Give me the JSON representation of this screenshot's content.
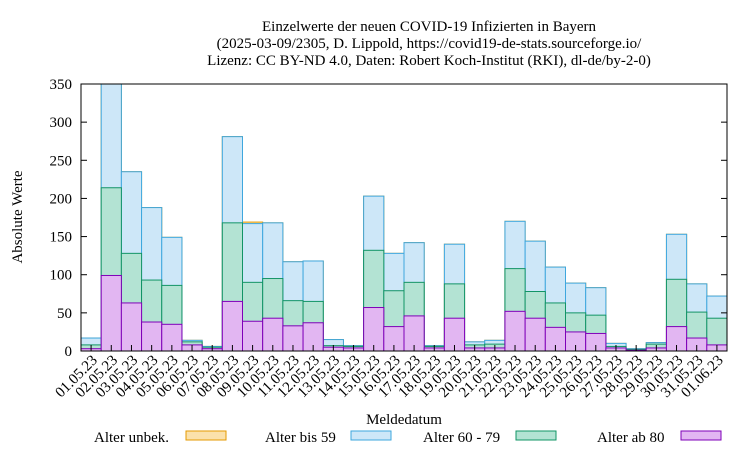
{
  "chart_data": {
    "type": "bar",
    "stacked": true,
    "title_lines": [
      "Einzelwerte der neuen COVID-19 Infizierten in Bayern",
      "(2025-03-09/2305, D. Lippold, https://covid19-de-stats.sourceforge.io/",
      "Lizenz: CC BY-ND 4.0, Daten: Robert Koch-Institut (RKI), dl-de/by-2-0)"
    ],
    "xlabel": "Meldedatum",
    "ylabel": "Absolute Werte",
    "ylim": [
      0,
      350
    ],
    "yticks": [
      0,
      50,
      100,
      150,
      200,
      250,
      300,
      350
    ],
    "grid": false,
    "legend_position": "bottom",
    "categories": [
      "01.05.23",
      "02.05.23",
      "03.05.23",
      "04.05.23",
      "05.05.23",
      "06.05.23",
      "07.05.23",
      "08.05.23",
      "09.05.23",
      "10.05.23",
      "11.05.23",
      "12.05.23",
      "13.05.23",
      "14.05.23",
      "15.05.23",
      "16.05.23",
      "17.05.23",
      "18.05.23",
      "19.05.23",
      "20.05.23",
      "21.05.23",
      "22.05.23",
      "23.05.23",
      "24.05.23",
      "25.05.23",
      "26.05.23",
      "27.05.23",
      "28.05.23",
      "29.05.23",
      "30.05.23",
      "31.05.23",
      "01.06.23"
    ],
    "series": [
      {
        "name": "Alter ab 80",
        "color": "#e2b6f2",
        "stroke": "#7f00b8",
        "values": [
          3,
          99,
          63,
          38,
          35,
          8,
          3,
          65,
          39,
          43,
          33,
          37,
          5,
          4,
          57,
          32,
          46,
          4,
          43,
          4,
          4,
          52,
          43,
          31,
          25,
          23,
          4,
          1,
          4,
          32,
          17,
          8
        ]
      },
      {
        "name": "Alter 60 - 79",
        "color": "#b3e3d3",
        "stroke": "#129466",
        "values": [
          5,
          115,
          65,
          55,
          51,
          4,
          2,
          103,
          51,
          52,
          33,
          28,
          2,
          2,
          75,
          47,
          44,
          2,
          45,
          4,
          5,
          56,
          35,
          32,
          25,
          24,
          2,
          1,
          5,
          62,
          34,
          35
        ]
      },
      {
        "name": "Alter bis 59",
        "color": "#cde7f8",
        "stroke": "#3ea7de",
        "values": [
          9,
          136,
          107,
          95,
          63,
          2,
          1,
          113,
          77,
          73,
          51,
          53,
          8,
          1,
          71,
          49,
          52,
          1,
          52,
          4,
          5,
          62,
          66,
          47,
          39,
          36,
          4,
          1,
          2,
          59,
          37,
          29
        ]
      },
      {
        "name": "Alter unbek.",
        "color": "#fbe1ab",
        "stroke": "#e59a00",
        "values": [
          0,
          0,
          0,
          0,
          0,
          0,
          0,
          0,
          2,
          0,
          0,
          0,
          0,
          0,
          0,
          0,
          0,
          0,
          0,
          0,
          0,
          0,
          0,
          0,
          0,
          0,
          0,
          0,
          0,
          0,
          0,
          0
        ]
      }
    ],
    "legend_order": [
      "Alter unbek.",
      "Alter bis 59",
      "Alter 60 - 79",
      "Alter ab 80"
    ]
  }
}
